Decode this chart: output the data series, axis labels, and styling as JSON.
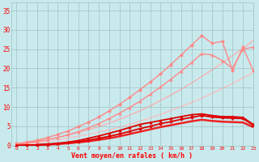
{
  "xlabel": "Vent moyen/en rafales ( km/h )",
  "xlim": [
    -0.5,
    23
  ],
  "ylim": [
    0,
    37
  ],
  "xticks": [
    0,
    1,
    2,
    3,
    4,
    5,
    6,
    7,
    8,
    9,
    10,
    11,
    12,
    13,
    14,
    15,
    16,
    17,
    18,
    19,
    20,
    21,
    22,
    23
  ],
  "yticks": [
    0,
    5,
    10,
    15,
    20,
    25,
    30,
    35
  ],
  "bg_color": "#c8eaed",
  "grid_color": "#a0bfc4",
  "series": [
    {
      "label": "straight_line_upper",
      "x": [
        0,
        1,
        2,
        3,
        4,
        5,
        6,
        7,
        8,
        9,
        10,
        11,
        12,
        13,
        14,
        15,
        16,
        17,
        18,
        19,
        20,
        21,
        22,
        23
      ],
      "y": [
        0.5,
        0.8,
        1.2,
        1.6,
        2.1,
        2.7,
        3.4,
        4.1,
        4.9,
        5.8,
        6.8,
        7.9,
        9.0,
        10.3,
        11.7,
        13.1,
        14.6,
        16.2,
        17.9,
        19.6,
        21.4,
        23.3,
        25.2,
        27.2
      ],
      "color": "#ffaaaa",
      "lw": 0.9,
      "marker": null,
      "ms": 0,
      "zorder": 1
    },
    {
      "label": "straight_line_mid",
      "x": [
        0,
        1,
        2,
        3,
        4,
        5,
        6,
        7,
        8,
        9,
        10,
        11,
        12,
        13,
        14,
        15,
        16,
        17,
        18,
        19,
        20,
        21,
        22,
        23
      ],
      "y": [
        0.3,
        0.5,
        0.8,
        1.1,
        1.5,
        1.9,
        2.4,
        2.9,
        3.5,
        4.1,
        4.8,
        5.5,
        6.3,
        7.2,
        8.1,
        9.1,
        10.1,
        11.2,
        12.3,
        13.5,
        14.8,
        16.1,
        17.5,
        18.9
      ],
      "color": "#ffbbbb",
      "lw": 0.9,
      "marker": null,
      "ms": 0,
      "zorder": 1
    },
    {
      "label": "pink_with_markers_upper",
      "x": [
        0,
        1,
        2,
        3,
        4,
        5,
        6,
        7,
        8,
        9,
        10,
        11,
        12,
        13,
        14,
        15,
        16,
        17,
        18,
        19,
        20,
        21,
        22,
        23
      ],
      "y": [
        0.5,
        0.9,
        1.4,
        2.1,
        2.9,
        3.8,
        4.9,
        6.1,
        7.4,
        9.0,
        10.7,
        12.5,
        14.5,
        16.5,
        18.6,
        21.0,
        23.5,
        26.0,
        28.5,
        26.5,
        27.0,
        19.5,
        25.5,
        19.5
      ],
      "color": "#ff8888",
      "lw": 1.0,
      "marker": "o",
      "ms": 2.5,
      "zorder": 3
    },
    {
      "label": "pink_with_markers_lower",
      "x": [
        0,
        1,
        2,
        3,
        4,
        5,
        6,
        7,
        8,
        9,
        10,
        11,
        12,
        13,
        14,
        15,
        16,
        17,
        18,
        19,
        20,
        21,
        22,
        23
      ],
      "y": [
        0.3,
        0.6,
        1.0,
        1.5,
        2.1,
        2.8,
        3.6,
        4.6,
        5.7,
        7.0,
        8.4,
        9.9,
        11.5,
        13.3,
        15.2,
        17.2,
        19.3,
        21.5,
        23.8,
        23.5,
        22.0,
        20.0,
        25.0,
        25.5
      ],
      "color": "#ff8888",
      "lw": 1.0,
      "marker": "^",
      "ms": 2.5,
      "zorder": 3
    },
    {
      "label": "dark_red_upper",
      "x": [
        0,
        1,
        2,
        3,
        4,
        5,
        6,
        7,
        8,
        9,
        10,
        11,
        12,
        13,
        14,
        15,
        16,
        17,
        18,
        19,
        20,
        21,
        22,
        23
      ],
      "y": [
        0,
        0.1,
        0.2,
        0.4,
        0.6,
        0.9,
        1.3,
        1.9,
        2.5,
        3.2,
        3.9,
        4.7,
        5.5,
        6.0,
        6.5,
        7.0,
        7.5,
        8.0,
        8.2,
        7.8,
        7.5,
        7.5,
        7.3,
        5.5
      ],
      "color": "#dd0000",
      "lw": 1.3,
      "marker": "^",
      "ms": 2.5,
      "zorder": 5
    },
    {
      "label": "dark_red_mid",
      "x": [
        0,
        1,
        2,
        3,
        4,
        5,
        6,
        7,
        8,
        9,
        10,
        11,
        12,
        13,
        14,
        15,
        16,
        17,
        18,
        19,
        20,
        21,
        22,
        23
      ],
      "y": [
        0,
        0.1,
        0.2,
        0.3,
        0.5,
        0.7,
        1.0,
        1.4,
        1.9,
        2.4,
        3.0,
        3.7,
        4.4,
        5.0,
        5.7,
        6.2,
        6.8,
        7.3,
        7.8,
        7.4,
        7.2,
        7.1,
        7.0,
        5.3
      ],
      "color": "#dd0000",
      "lw": 1.3,
      "marker": "D",
      "ms": 2.0,
      "zorder": 5
    },
    {
      "label": "dark_red_lower",
      "x": [
        0,
        1,
        2,
        3,
        4,
        5,
        6,
        7,
        8,
        9,
        10,
        11,
        12,
        13,
        14,
        15,
        16,
        17,
        18,
        19,
        20,
        21,
        22,
        23
      ],
      "y": [
        0,
        0.05,
        0.15,
        0.25,
        0.4,
        0.6,
        0.85,
        1.1,
        1.5,
        1.9,
        2.4,
        3.0,
        3.6,
        4.2,
        4.8,
        5.3,
        5.8,
        6.3,
        6.7,
        6.4,
        6.2,
        6.1,
        6.0,
        4.8
      ],
      "color": "#ee2222",
      "lw": 1.8,
      "marker": null,
      "ms": 0,
      "zorder": 4
    }
  ]
}
